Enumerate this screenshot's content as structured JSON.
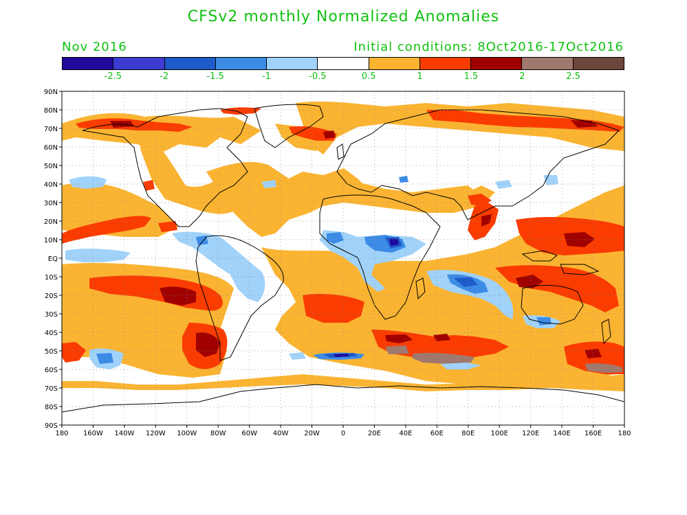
{
  "header": {
    "title": "CFSv2 monthly Normalized Anomalies",
    "month": "Nov 2016",
    "initial_conditions": "Initial conditions: 8Oct2016-17Oct2016"
  },
  "colorbar": {
    "colors": [
      "#1f0a9c",
      "#3c3cd2",
      "#1e5ac8",
      "#3c8ce6",
      "#a0d2fa",
      "#ffffff",
      "#fab432",
      "#fa3c00",
      "#a00000",
      "#a0786e",
      "#6e463c"
    ],
    "labels": [
      "-2.5",
      "-2",
      "-1.5",
      "-1",
      "-0.5",
      "0.5",
      "1",
      "1.5",
      "2",
      "2.5"
    ]
  },
  "axes": {
    "lat_labels": [
      "90N",
      "80N",
      "70N",
      "60N",
      "50N",
      "40N",
      "30N",
      "20N",
      "10N",
      "EQ",
      "10S",
      "20S",
      "30S",
      "40S",
      "50S",
      "60S",
      "70S",
      "80S",
      "90S"
    ],
    "lon_labels": [
      "180",
      "160W",
      "140W",
      "120W",
      "100W",
      "80W",
      "60W",
      "40W",
      "20W",
      "0",
      "20E",
      "40E",
      "60E",
      "80E",
      "100E",
      "120E",
      "140E",
      "160E",
      "180"
    ]
  },
  "legend_colors": {
    "pos1": "#fab432",
    "pos2": "#fa3c00",
    "pos3": "#a00000",
    "pos4": "#a0786e",
    "neg1": "#a0d2fa",
    "neg2": "#3c8ce6",
    "neg3": "#1e5ac8",
    "neg4": "#1f0a9c"
  }
}
